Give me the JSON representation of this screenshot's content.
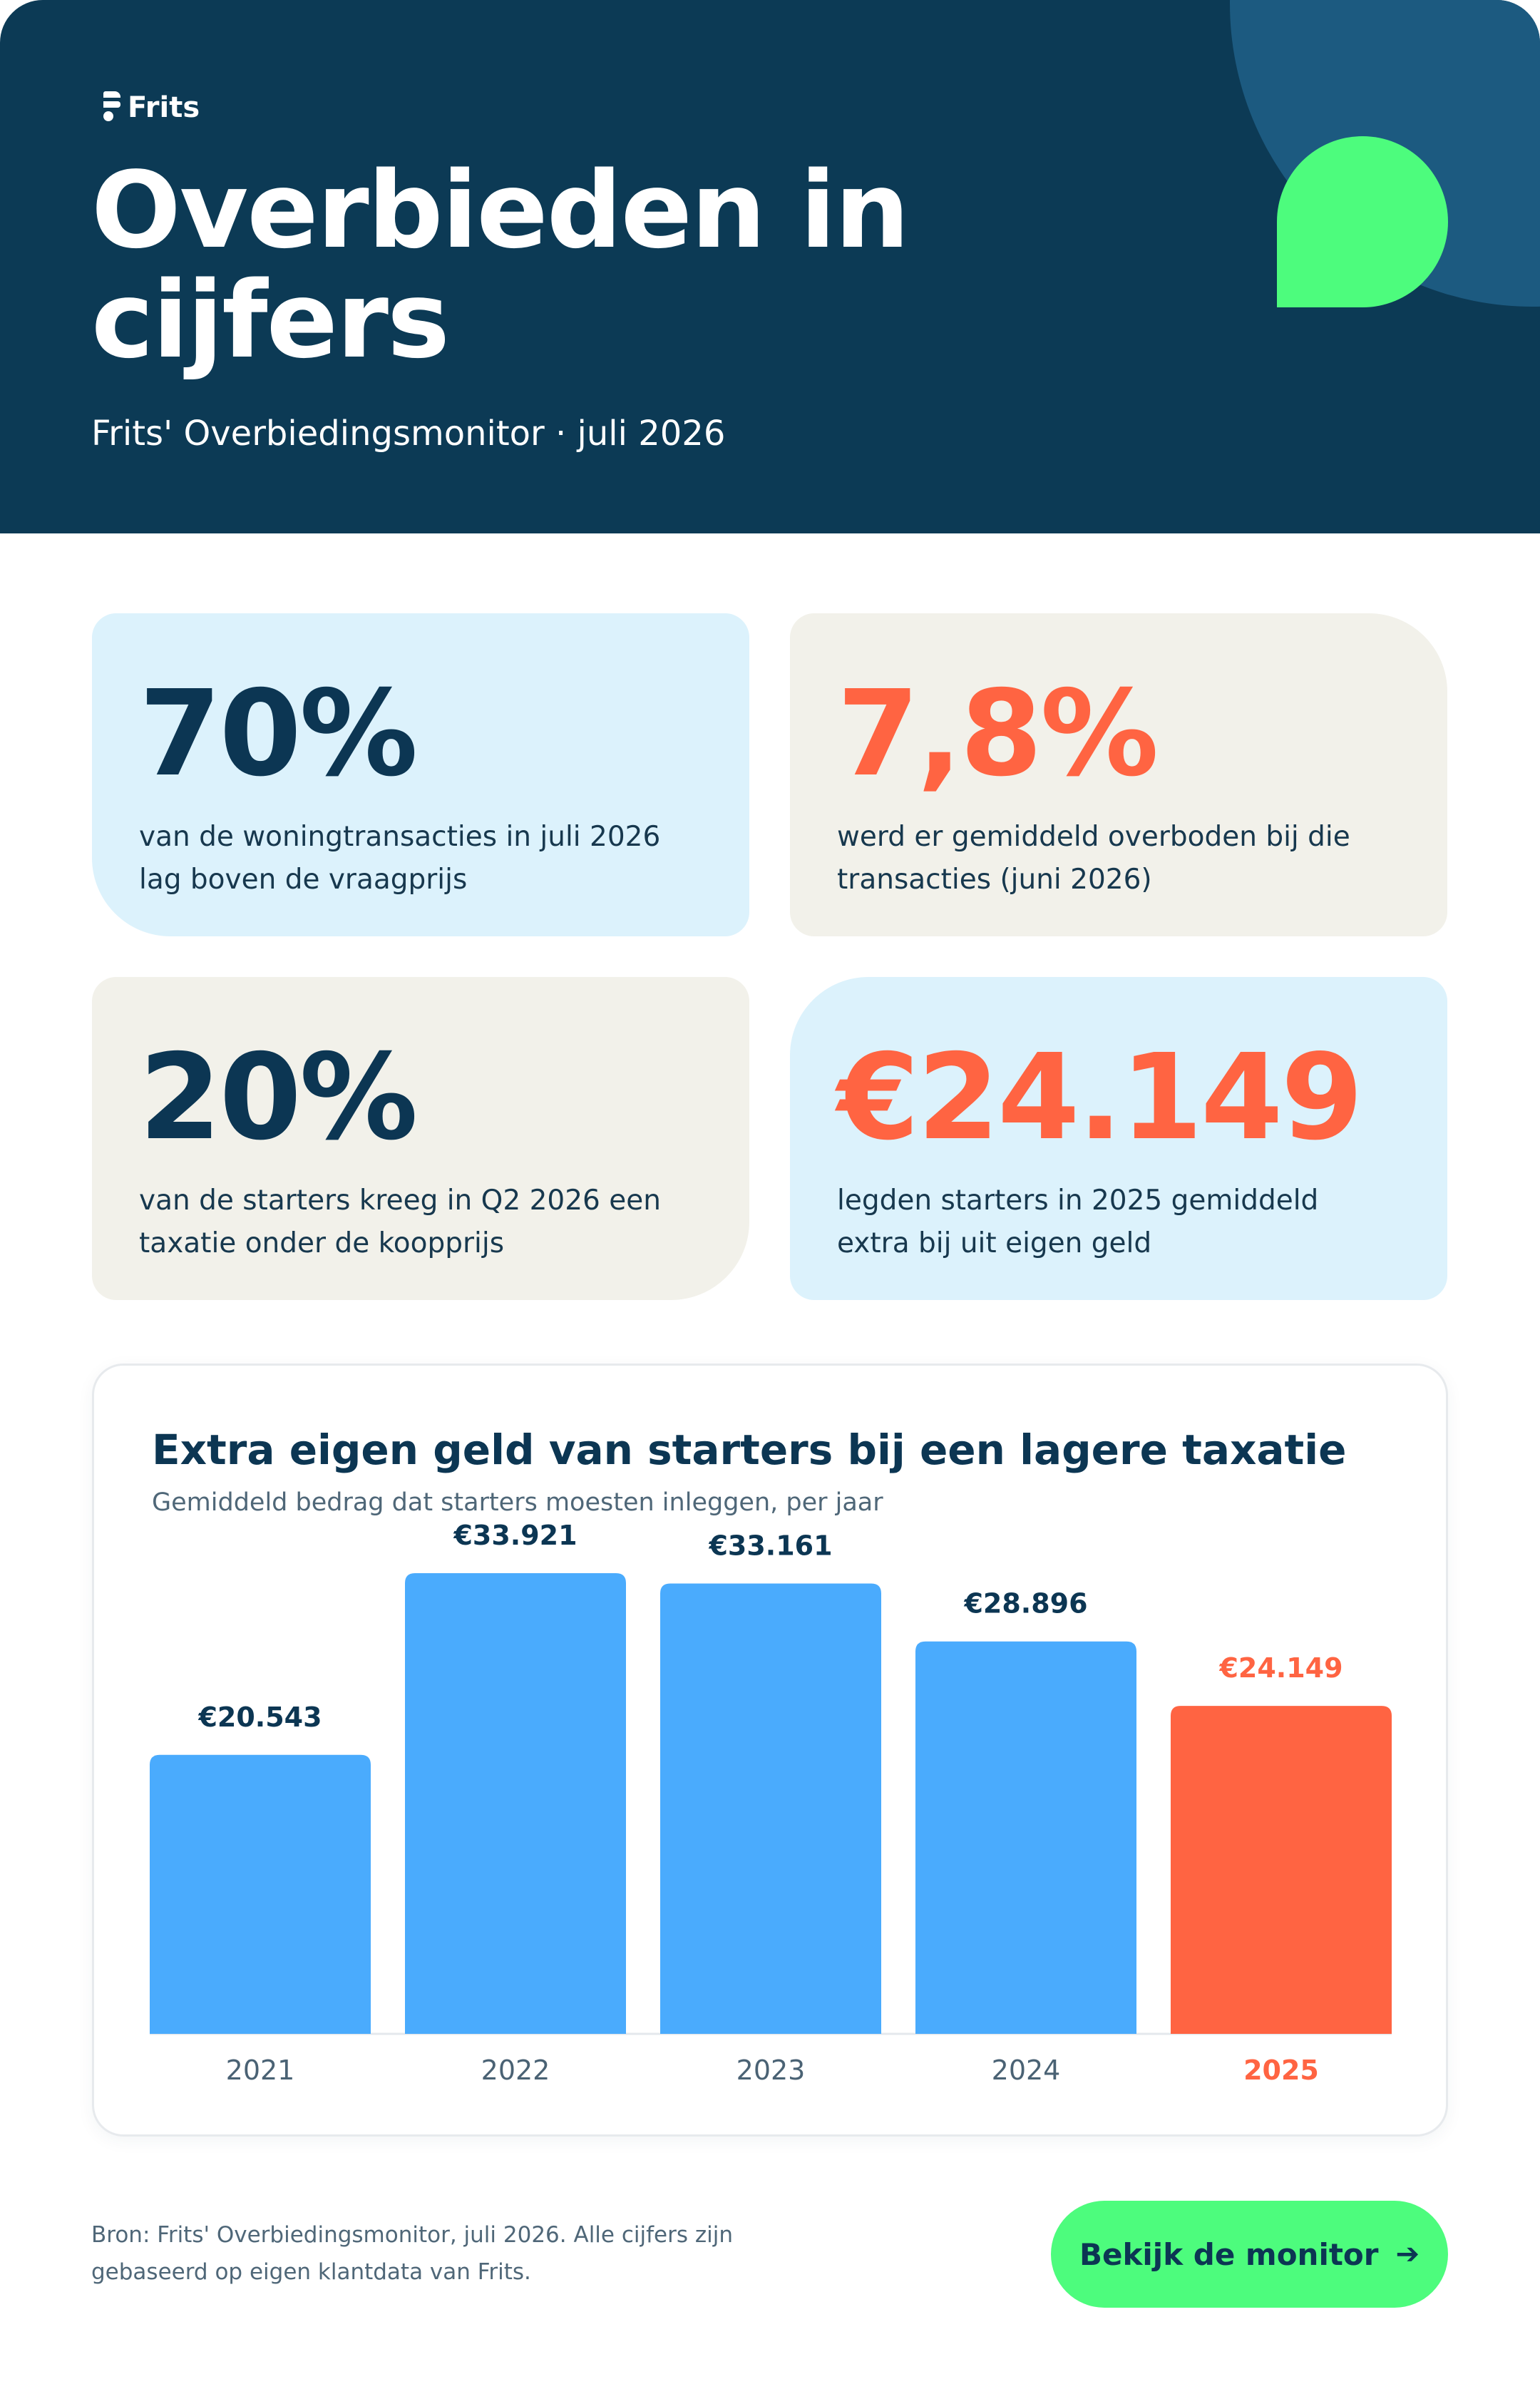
{
  "header": {
    "logo_text": "Frits",
    "title": "Overbieden in cijfers",
    "subtitle": "Frits' Overbiedingsmonitor · juli 2026"
  },
  "stats": [
    {
      "value": "70%",
      "description": "van de woningtransacties in juli 2026 lag boven de vraagprijs"
    },
    {
      "value": "7,8%",
      "description": "werd er gemiddeld overboden bij die transacties (juni 2026)"
    },
    {
      "value": "20%",
      "description": "van de starters kreeg in Q2 2026 een taxatie onder de koopprijs"
    },
    {
      "value": "€24.149",
      "description": "legden starters in 2025 gemiddeld extra bij uit eigen geld"
    }
  ],
  "colors": {
    "navy": "#0c3a55",
    "accent_green": "#4dfc7d",
    "bar_blue": "#4aabfd",
    "highlight_orange": "#ff6442",
    "card_blue": "#dcf2fc",
    "card_sand": "#f2f1ea"
  },
  "chart_data": {
    "type": "bar",
    "title": "Extra eigen geld van starters bij een lagere taxatie",
    "subtitle": "Gemiddeld bedrag dat starters moesten inleggen, per jaar",
    "categories": [
      "2021",
      "2022",
      "2023",
      "2024",
      "2025"
    ],
    "values": [
      20543,
      33921,
      33161,
      28896,
      24149
    ],
    "value_labels": [
      "€20.543",
      "€33.921",
      "€33.161",
      "€28.896",
      "€24.149"
    ],
    "highlight_category": "2025",
    "ylim": [
      0,
      33921
    ],
    "grid": false,
    "xlabel": "",
    "ylabel": ""
  },
  "footer": {
    "source": "Bron: Frits' Overbiedingsmonitor, juli 2026. Alle cijfers zijn gebaseerd op eigen klantdata van Frits.",
    "cta_label": "Bekijk de monitor",
    "cta_icon": "arrow-right-icon"
  }
}
